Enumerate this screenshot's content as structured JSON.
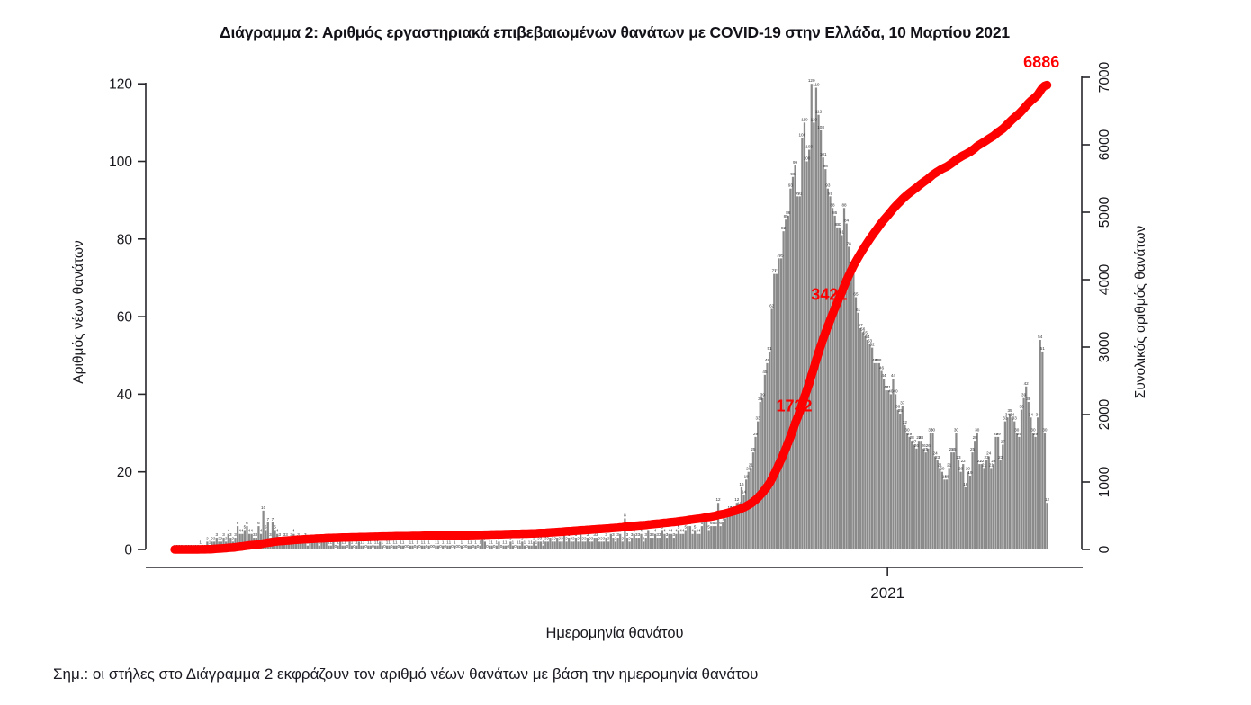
{
  "page": {
    "note": "Σημ.: οι στήλες στο Διάγραμμα 2 εκφράζουν τον αριθμό νέων θανάτων με βάση την ημερομηνία θανάτου"
  },
  "chart_data": {
    "type": "bar",
    "title": "Διάγραμμα 2: Αριθμός εργαστηριακά επιβεβαιωμένων θανάτων με COVID-19 στην Ελλάδα, 10 Μαρτίου 2021",
    "xlabel": "Ημερομηνία θανάτου",
    "ylabel_left": "Αριθμός νέων θανάτων",
    "ylabel_right": "Συνολικός αριθμός θανάτων",
    "x_start_date": "2020-03-01",
    "x_end_date": "2021-03-10",
    "x_tick": {
      "label": "2021",
      "day_index": 306
    },
    "yticks_left": [
      0,
      20,
      40,
      60,
      80,
      100,
      120
    ],
    "ylim_left": [
      0,
      124
    ],
    "yticks_right": [
      0,
      1000,
      2000,
      3000,
      4000,
      5000,
      6000,
      7000
    ],
    "ylim_right": [
      0,
      7100
    ],
    "grid": false,
    "legend": false,
    "bar_color": "#8a8a8a",
    "bar_label_color": "#2e2e33",
    "line_color": "#ff0000",
    "axis_color": "#26262b",
    "cumulative_final": 6886,
    "annotations": [
      {
        "label": "1732",
        "day_index": 266,
        "axis_value": 2050
      },
      {
        "label": "3422",
        "day_index": 281,
        "axis_value": 3700
      },
      {
        "label": "6886",
        "day_index": 372,
        "axis_value": 7150
      }
    ],
    "series": [
      {
        "name": "daily_deaths",
        "type": "bar",
        "values": [
          0,
          0,
          0,
          0,
          0,
          0,
          0,
          0,
          0,
          0,
          0,
          1,
          0,
          0,
          2,
          1,
          2,
          2,
          3,
          2,
          2,
          3,
          2,
          4,
          3,
          2,
          3,
          6,
          4,
          4,
          5,
          6,
          4,
          4,
          3,
          3,
          6,
          4,
          10,
          5,
          7,
          3,
          7,
          5,
          4,
          3,
          2,
          3,
          3,
          2,
          3,
          4,
          2,
          3,
          2,
          2,
          3,
          1,
          2,
          2,
          2,
          2,
          1,
          2,
          2,
          2,
          1,
          1,
          2,
          0,
          1,
          2,
          1,
          1,
          0,
          2,
          1,
          0,
          1,
          2,
          1,
          1,
          0,
          1,
          1,
          0,
          1,
          1,
          2,
          1,
          0,
          1,
          1,
          0,
          1,
          1,
          0,
          1,
          1,
          0,
          0,
          1,
          1,
          0,
          1,
          0,
          1,
          1,
          0,
          1,
          0,
          0,
          1,
          1,
          0,
          1,
          0,
          1,
          1,
          0,
          1,
          0,
          0,
          1,
          0,
          0,
          1,
          1,
          0,
          1,
          0,
          1,
          3,
          2,
          0,
          1,
          1,
          0,
          1,
          2,
          0,
          1,
          1,
          0,
          2,
          1,
          0,
          1,
          1,
          2,
          1,
          0,
          1,
          1,
          2,
          1,
          2,
          2,
          1,
          2,
          2,
          3,
          2,
          2,
          3,
          2,
          2,
          4,
          2,
          3,
          2,
          2,
          3,
          2,
          4,
          2,
          2,
          3,
          2,
          2,
          3,
          3,
          2,
          2,
          2,
          3,
          2,
          4,
          3,
          2,
          3,
          4,
          2,
          8,
          3,
          2,
          3,
          4,
          3,
          3,
          4,
          2,
          3,
          5,
          3,
          3,
          4,
          3,
          3,
          5,
          4,
          3,
          4,
          4,
          3,
          4,
          5,
          4,
          4,
          5,
          6,
          6,
          4,
          5,
          4,
          4,
          6,
          7,
          7,
          5,
          6,
          6,
          6,
          12,
          6,
          7,
          8,
          9,
          10,
          10,
          9,
          12,
          11,
          16,
          14,
          18,
          20,
          21,
          25,
          29,
          33,
          38,
          39,
          45,
          48,
          51,
          62,
          71,
          71,
          75,
          75,
          82,
          85,
          86,
          93,
          96,
          99,
          91,
          91,
          106,
          110,
          100,
          103,
          120,
          110,
          119,
          112,
          108,
          101,
          98,
          93,
          91,
          88,
          86,
          83,
          83,
          81,
          88,
          84,
          78,
          73,
          72,
          65,
          61,
          57,
          56,
          55,
          54,
          53,
          52,
          48,
          48,
          48,
          46,
          44,
          41,
          41,
          40,
          44,
          40,
          36,
          35,
          37,
          32,
          30,
          29,
          28,
          27,
          26,
          28,
          28,
          26,
          25,
          26,
          30,
          30,
          24,
          23,
          21,
          20,
          18,
          18,
          21,
          25,
          25,
          30,
          23,
          20,
          22,
          16,
          20,
          19,
          25,
          28,
          30,
          22,
          22,
          21,
          23,
          24,
          21,
          22,
          29,
          29,
          23,
          27,
          33,
          34,
          35,
          34,
          33,
          30,
          29,
          36,
          39,
          42,
          38,
          34,
          30,
          29,
          34,
          54,
          51,
          30,
          12
        ]
      },
      {
        "name": "cumulative_deaths",
        "type": "line",
        "derived_from": "daily_deaths",
        "final_value": 6886
      }
    ]
  }
}
